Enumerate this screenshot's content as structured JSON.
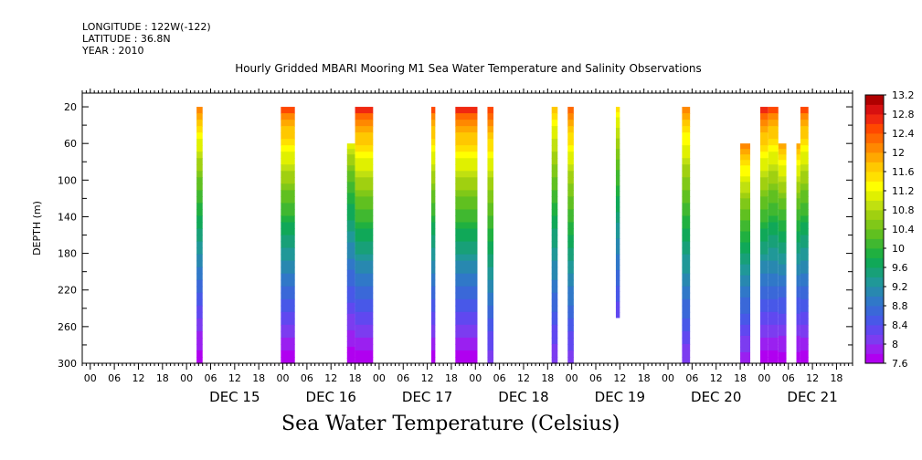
{
  "header": {
    "longitude": "LONGITUDE : 122W(-122)",
    "latitude": "LATITUDE : 36.8N",
    "year": "YEAR : 2010",
    "title": "Hourly Gridded MBARI Mooring M1 Sea Water Temperature and Salinity Observations"
  },
  "chart_data": {
    "type": "heatmap",
    "title": "Hourly Gridded MBARI Mooring M1 Sea Water Temperature and Salinity Observations",
    "subtitle": "Sea Water Temperature (Celsius)",
    "xlabel": "",
    "ylabel": "DEPTH (m)",
    "x_unit": "hours since DEC 14 00:00",
    "xlim": [
      -2,
      190
    ],
    "ylim": [
      300,
      5
    ],
    "y_inverted": true,
    "y_ticks": [
      20,
      60,
      100,
      140,
      180,
      220,
      260,
      300
    ],
    "x_hour_ticks": [
      "00",
      "06",
      "12",
      "18",
      "00",
      "06",
      "12",
      "18",
      "00",
      "06",
      "12",
      "18",
      "00",
      "06",
      "12",
      "18",
      "00",
      "06",
      "12",
      "18",
      "00",
      "06",
      "12",
      "18",
      "00",
      "06",
      "12",
      "18",
      "00",
      "06",
      "12",
      "18"
    ],
    "x_hour_tick_positions": [
      0,
      6,
      12,
      18,
      24,
      30,
      36,
      42,
      48,
      54,
      60,
      66,
      72,
      78,
      84,
      90,
      96,
      102,
      108,
      114,
      120,
      126,
      132,
      138,
      144,
      150,
      156,
      162,
      168,
      174,
      180,
      186
    ],
    "day_labels": [
      "DEC 15",
      "DEC 16",
      "DEC 17",
      "DEC 18",
      "DEC 19",
      "DEC 20",
      "DEC 21"
    ],
    "day_label_positions": [
      36,
      60,
      84,
      108,
      132,
      156,
      180
    ],
    "colorbar": {
      "levels": [
        7.6,
        7.8,
        8,
        8.2,
        8.4,
        8.6,
        8.8,
        9,
        9.2,
        9.4,
        9.6,
        9.8,
        10,
        10.2,
        10.4,
        10.6,
        10.8,
        11,
        11.2,
        11.4,
        11.6,
        11.8,
        12,
        12.2,
        12.4,
        12.6,
        12.8,
        13,
        13.2
      ],
      "tick_labels": [
        "13.2",
        "12.8",
        "12.4",
        "12",
        "11.6",
        "11.2",
        "10.8",
        "10.4",
        "10",
        "9.6",
        "9.2",
        "8.8",
        "8.4",
        "8",
        "7.6"
      ],
      "colors": [
        "#b000f0",
        "#9a20f0",
        "#7c3cf0",
        "#6048f0",
        "#4858e8",
        "#3a68d8",
        "#3078c8",
        "#2888b0",
        "#209898",
        "#18a078",
        "#10a858",
        "#20b040",
        "#40b830",
        "#60c020",
        "#80c818",
        "#a0d010",
        "#c0e010",
        "#e0f000",
        "#ffff00",
        "#ffe000",
        "#ffc800",
        "#ffa800",
        "#ff8800",
        "#ff6800",
        "#ff4800",
        "#f02810",
        "#d81010",
        "#b00000"
      ]
    },
    "segments": [
      {
        "x0": 26.5,
        "x1": 28,
        "ytop": 20,
        "ybot": 300,
        "temp_top": 12.2,
        "temp_bot": 7.6
      },
      {
        "x0": 47.5,
        "x1": 51,
        "ytop": 20,
        "ybot": 300,
        "temp_top": 12.6,
        "temp_bot": 7.6
      },
      {
        "x0": 64,
        "x1": 66,
        "ytop": 60,
        "ybot": 300,
        "temp_top": 11.2,
        "temp_bot": 7.6
      },
      {
        "x0": 66,
        "x1": 70.5,
        "ytop": 20,
        "ybot": 300,
        "temp_top": 12.8,
        "temp_bot": 7.6
      },
      {
        "x0": 85,
        "x1": 86,
        "ytop": 20,
        "ybot": 300,
        "temp_top": 12.6,
        "temp_bot": 7.6
      },
      {
        "x0": 91,
        "x1": 96.5,
        "ytop": 20,
        "ybot": 300,
        "temp_top": 12.8,
        "temp_bot": 7.6
      },
      {
        "x0": 99,
        "x1": 100.5,
        "ytop": 20,
        "ybot": 300,
        "temp_top": 12.6,
        "temp_bot": 8.0
      },
      {
        "x0": 115,
        "x1": 116.5,
        "ytop": 20,
        "ybot": 300,
        "temp_top": 11.8,
        "temp_bot": 8.0
      },
      {
        "x0": 119,
        "x1": 120.5,
        "ytop": 20,
        "ybot": 300,
        "temp_top": 12.4,
        "temp_bot": 8.0
      },
      {
        "x0": 131,
        "x1": 132,
        "ytop": 20,
        "ybot": 250,
        "temp_top": 11.6,
        "temp_bot": 8.2
      },
      {
        "x0": 147.5,
        "x1": 149.5,
        "ytop": 20,
        "ybot": 300,
        "temp_top": 12.2,
        "temp_bot": 8.0
      },
      {
        "x0": 162,
        "x1": 164.5,
        "ytop": 60,
        "ybot": 300,
        "temp_top": 12.2,
        "temp_bot": 7.8
      },
      {
        "x0": 167,
        "x1": 169,
        "ytop": 20,
        "ybot": 300,
        "temp_top": 12.8,
        "temp_bot": 7.6
      },
      {
        "x0": 169,
        "x1": 171.5,
        "ytop": 20,
        "ybot": 300,
        "temp_top": 12.6,
        "temp_bot": 7.6
      },
      {
        "x0": 171.5,
        "x1": 173.5,
        "ytop": 60,
        "ybot": 300,
        "temp_top": 12.0,
        "temp_bot": 7.6
      },
      {
        "x0": 176,
        "x1": 177,
        "ytop": 60,
        "ybot": 300,
        "temp_top": 12.0,
        "temp_bot": 7.6
      },
      {
        "x0": 177,
        "x1": 179,
        "ytop": 20,
        "ybot": 300,
        "temp_top": 12.6,
        "temp_bot": 7.6
      }
    ]
  }
}
